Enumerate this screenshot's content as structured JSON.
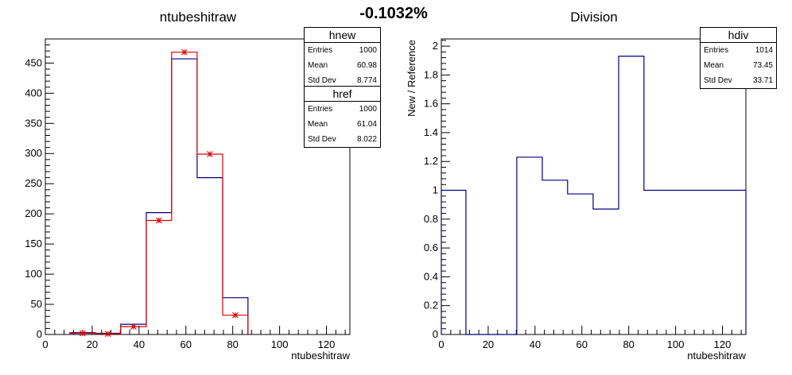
{
  "overall_title": "-0.1032%",
  "stats": {
    "hnew": {
      "name": "hnew",
      "rows": [
        {
          "label": "Entries",
          "value": "1000"
        },
        {
          "label": "Mean",
          "value": "60.98"
        },
        {
          "label": "Std Dev",
          "value": "8.774"
        }
      ]
    },
    "href": {
      "name": "href",
      "rows": [
        {
          "label": "Entries",
          "value": "1000"
        },
        {
          "label": "Mean",
          "value": "61.04"
        },
        {
          "label": "Std Dev",
          "value": "8.022"
        }
      ]
    },
    "hdiv": {
      "name": "hdiv",
      "rows": [
        {
          "label": "Entries",
          "value": "1014"
        },
        {
          "label": "Mean",
          "value": "73.45"
        },
        {
          "label": "Std Dev",
          "value": "33.71"
        }
      ]
    }
  },
  "colors": {
    "new": "#000080",
    "ref": "#dd0000",
    "div": "#000080",
    "axis": "#000000"
  },
  "chart_data": [
    {
      "type": "histogram",
      "title": "ntubeshitraw",
      "xlabel": "ntubeshitraw",
      "ylabel": "",
      "xlim": [
        0,
        130
      ],
      "ylim": [
        0,
        490
      ],
      "xticks": [
        0,
        20,
        40,
        60,
        80,
        100,
        120
      ],
      "yticks": [
        0,
        50,
        100,
        150,
        200,
        250,
        300,
        350,
        400,
        450
      ],
      "bin_edges": [
        10.5,
        21.3,
        32.2,
        43.1,
        53.9,
        64.8,
        75.7,
        86.5
      ],
      "series": [
        {
          "name": "hnew",
          "style": "step",
          "values": [
            3,
            2,
            17,
            202,
            457,
            260,
            61
          ]
        },
        {
          "name": "href",
          "style": "step-markers",
          "values": [
            2,
            1,
            13,
            189,
            468,
            299,
            32
          ]
        }
      ]
    },
    {
      "type": "histogram",
      "title": "Division",
      "xlabel": "ntubeshitraw",
      "ylabel": "New / Reference",
      "xlim": [
        0,
        130
      ],
      "ylim": [
        0,
        2.05
      ],
      "xticks": [
        0,
        20,
        40,
        60,
        80,
        100,
        120
      ],
      "yticks": [
        0,
        0.2,
        0.4,
        0.6,
        0.8,
        1,
        1.2,
        1.4,
        1.6,
        1.8,
        2
      ],
      "bin_edges": [
        0,
        10.5,
        32.2,
        43.1,
        53.9,
        64.8,
        75.7,
        86.5,
        130
      ],
      "series": [
        {
          "name": "hdiv",
          "style": "step",
          "values": [
            1.0,
            0,
            1.23,
            1.07,
            0.975,
            0.87,
            1.93,
            1.0
          ]
        }
      ]
    }
  ]
}
